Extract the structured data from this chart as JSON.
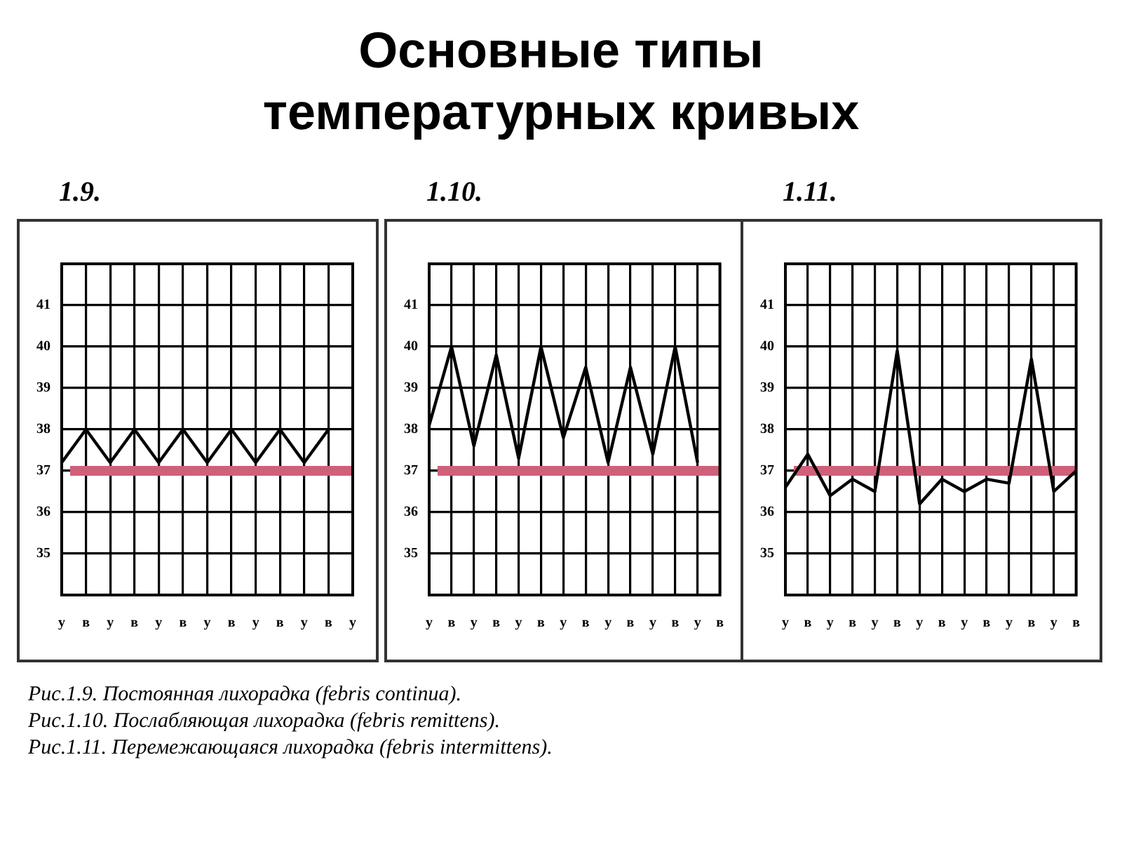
{
  "chart_data": [
    {
      "type": "other",
      "title": "Основные типы температурных кривых",
      "annotations": [
        "Рис.1.9. Постоянная лихорадка  (febris continua).",
        "Рис.1.10. Послабляющая лихорадка (febris remittens).",
        "Рис.1.11. Перемежающаяся лихорадка (febris intermittens)."
      ]
    },
    {
      "type": "line",
      "title": "1.9.",
      "categories": [
        "у",
        "в",
        "у",
        "в",
        "у",
        "в",
        "у",
        "в",
        "у",
        "в",
        "у",
        "в",
        "у"
      ],
      "series": [
        {
          "color": "#000000",
          "values": [
            37.2,
            38,
            37.2,
            38,
            37.2,
            38,
            37.2,
            38,
            37.2,
            38,
            37.2,
            38,
            null
          ]
        }
      ],
      "ylim": [
        34,
        42
      ],
      "yticks": [
        35,
        36,
        37,
        38,
        39,
        40,
        41
      ],
      "grid": true,
      "legend": false,
      "marker": "none",
      "line_style": "solid",
      "ref_lines": [
        {
          "axis": "y",
          "value": 37,
          "color": "#d0607a"
        }
      ]
    },
    {
      "type": "line",
      "title": "1.10.",
      "categories": [
        "у",
        "в",
        "у",
        "в",
        "у",
        "в",
        "у",
        "в",
        "у",
        "в",
        "у",
        "в",
        "у",
        "в"
      ],
      "series": [
        {
          "color": "#000000",
          "values": [
            38.1,
            40,
            37.6,
            39.8,
            37.3,
            40,
            37.8,
            39.5,
            37.2,
            39.5,
            37.4,
            40,
            37.2,
            null
          ]
        }
      ],
      "ylim": [
        34,
        42
      ],
      "yticks": [
        35,
        36,
        37,
        38,
        39,
        40,
        41
      ],
      "grid": true,
      "legend": false,
      "marker": "none",
      "line_style": "solid",
      "ref_lines": [
        {
          "axis": "y",
          "value": 37,
          "color": "#d0607a"
        }
      ]
    },
    {
      "type": "line",
      "title": "1.11.",
      "categories": [
        "у",
        "в",
        "у",
        "в",
        "у",
        "в",
        "у",
        "в",
        "у",
        "в",
        "у",
        "в",
        "у",
        "в"
      ],
      "series": [
        {
          "color": "#000000",
          "values": [
            36.6,
            37.4,
            36.4,
            36.8,
            36.5,
            39.9,
            36.2,
            36.8,
            36.5,
            36.8,
            36.7,
            39.7,
            36.5,
            37
          ]
        }
      ],
      "ylim": [
        34,
        42
      ],
      "yticks": [
        35,
        36,
        37,
        38,
        39,
        40,
        41
      ],
      "grid": true,
      "legend": false,
      "marker": "none",
      "line_style": "solid",
      "ref_lines": [
        {
          "axis": "y",
          "value": 37,
          "color": "#d0607a"
        }
      ]
    }
  ]
}
